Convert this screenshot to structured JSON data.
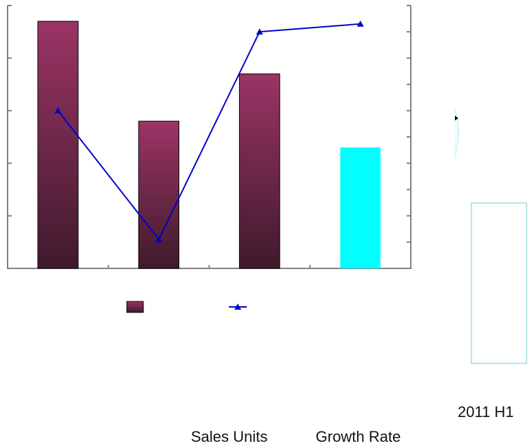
{
  "chart_data": {
    "type": "bar",
    "categories": [
      "",
      "",
      "",
      ""
    ],
    "series": [
      {
        "kind": "bar",
        "values": [
          4.7,
          2.8,
          3.7,
          2.3
        ]
      },
      {
        "kind": "line",
        "marker": "triangle",
        "values": [
          5.0,
          0.1,
          8.0,
          8.3
        ]
      }
    ],
    "ylim_left": [
      0,
      5
    ],
    "ylim_right": [
      -1,
      9
    ],
    "grid": false,
    "legend": "bottom",
    "colors": {
      "bar_top": "#9b3465",
      "bar_bottom": "#3f1a2c",
      "highlight_bar": "#00ffff",
      "line": "#0000cc",
      "axis": "#7f7f7f",
      "outline": "#66cccc"
    },
    "highlight_index": 3
  },
  "footer": {
    "label_2011": "2011 H1",
    "sales_units": "Sales Units",
    "growth_rate": "Growth Rate"
  }
}
